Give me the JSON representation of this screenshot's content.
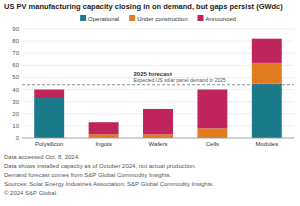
{
  "chart_data": {
    "type": "bar",
    "stacked": true,
    "title": "US PV manufacturing capacity closing in on demand, but gaps persist (GWdc)",
    "categories": [
      "Polysilicon",
      "Ingots",
      "Wafers",
      "Cells",
      "Modules"
    ],
    "series": [
      {
        "name": "Operational",
        "color": "#1a7a8a",
        "values": [
          33,
          0,
          0,
          0,
          45
        ]
      },
      {
        "name": "Under construction",
        "color": "#e07b20",
        "values": [
          0,
          3,
          3,
          8,
          17
        ]
      },
      {
        "name": "Announced",
        "color": "#c0245c",
        "values": [
          7,
          10,
          21,
          32,
          20
        ]
      }
    ],
    "reference_line": {
      "value": 44,
      "label": "2025 forecast",
      "note": "Expected US solar panel demand in 2025"
    },
    "ylim": [
      0,
      90
    ],
    "yticks": [
      0,
      10,
      20,
      30,
      40,
      50,
      60,
      70,
      80,
      90
    ],
    "grid": true,
    "legend": "top",
    "footnotes": [
      "Data accessed Oct. 8, 2024.",
      "Data shows installed capacity as of October 2024, not actual production.",
      "Demand forecast comes from S&P Global Commodity Insights.",
      "Sources: Solar Energy Industries Association; S&P Global Commodity Insights.",
      "© 2024 S&P Global."
    ]
  }
}
